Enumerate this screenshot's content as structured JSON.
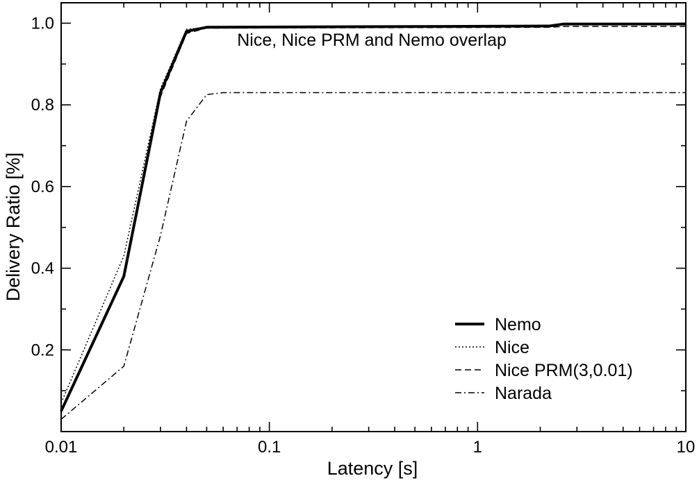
{
  "chart_data": {
    "type": "line",
    "title": "",
    "xlabel": "Latency [s]",
    "ylabel": "Delivery Ratio [%]",
    "xscale": "log",
    "xlim": [
      0.01,
      10
    ],
    "ylim": [
      0.0,
      1.05
    ],
    "x_ticks": [
      "0.01",
      "0.1",
      "1",
      "10"
    ],
    "y_ticks": [
      "0.2",
      "0.4",
      "0.6",
      "0.8",
      "1.0"
    ],
    "grid": false,
    "legend_position": "bottom-right",
    "annotations": [
      {
        "text": "Nice, Nice PRM and Nemo overlap",
        "x": 0.07,
        "y": 0.96
      }
    ],
    "series": [
      {
        "name": "Nemo",
        "style": "solid-thick",
        "color": "#000000",
        "x": [
          0.01,
          0.02,
          0.03,
          0.04,
          0.05,
          2.2,
          2.6,
          10
        ],
        "y": [
          0.05,
          0.38,
          0.83,
          0.98,
          0.99,
          0.993,
          0.998,
          0.998
        ]
      },
      {
        "name": "Nice",
        "style": "dotted",
        "color": "#000000",
        "x": [
          0.01,
          0.02,
          0.03,
          0.04,
          0.05,
          2.2,
          2.6,
          10
        ],
        "y": [
          0.07,
          0.43,
          0.84,
          0.985,
          0.99,
          0.993,
          0.997,
          0.997
        ]
      },
      {
        "name": "Nice PRM(3,0.01)",
        "style": "dashed",
        "color": "#000000",
        "x": [
          0.01,
          0.02,
          0.03,
          0.04,
          0.05,
          2.2,
          2.6,
          10
        ],
        "y": [
          0.05,
          0.38,
          0.82,
          0.975,
          0.988,
          0.99,
          0.992,
          0.992
        ]
      },
      {
        "name": "Narada",
        "style": "dashdot",
        "color": "#000000",
        "x": [
          0.01,
          0.02,
          0.03,
          0.04,
          0.05,
          0.06,
          10
        ],
        "y": [
          0.03,
          0.16,
          0.48,
          0.76,
          0.825,
          0.83,
          0.83
        ]
      }
    ]
  }
}
